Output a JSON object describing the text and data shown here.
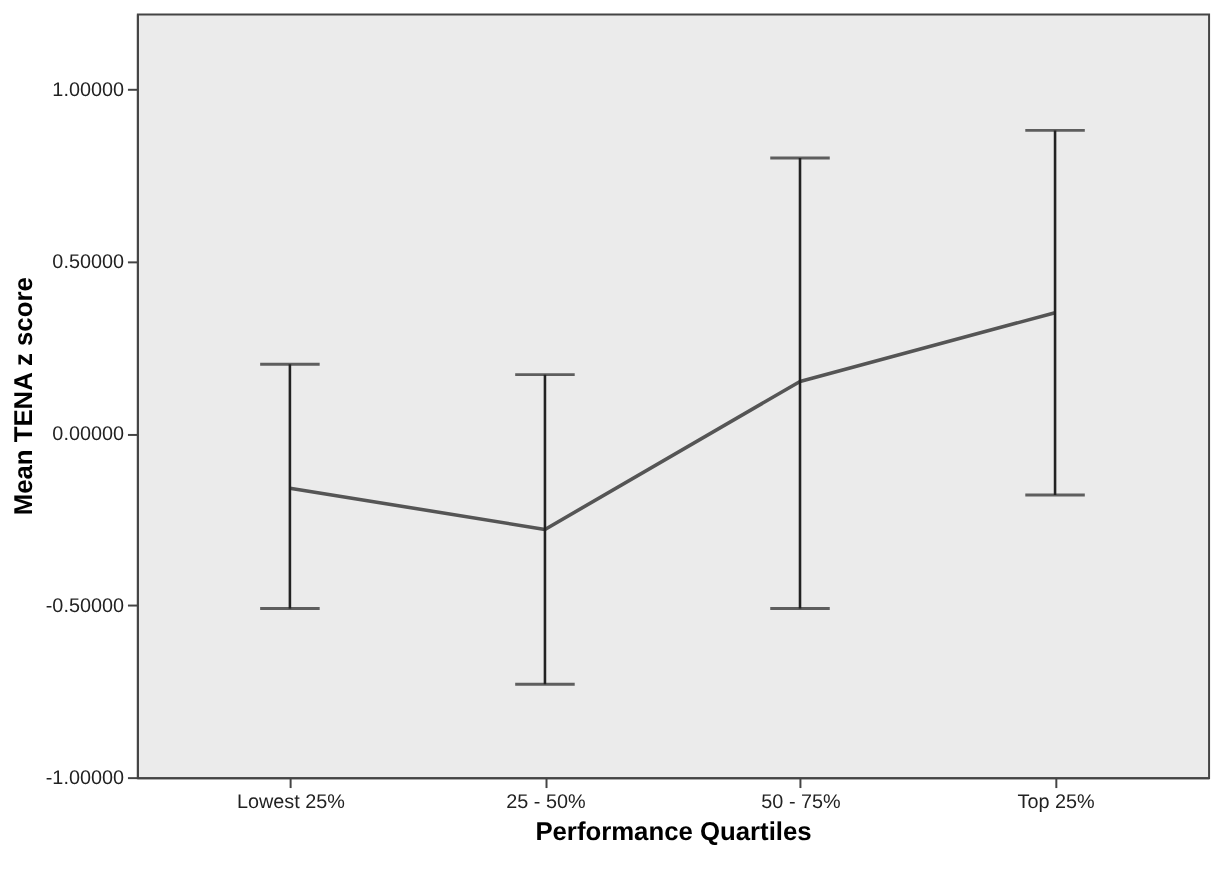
{
  "chart_data": {
    "type": "line",
    "xlabel": "Performance Quartiles",
    "ylabel": "Mean TENA z score",
    "categories": [
      "Lowest 25%",
      "25 - 50%",
      "50 - 75%",
      "Top 25%"
    ],
    "series": [
      {
        "color": "#555555",
        "values": [
          -0.16,
          -0.28,
          0.15,
          0.35
        ],
        "errors": [
          [
            -0.51,
            0.2
          ],
          [
            -0.73,
            0.17
          ],
          [
            -0.51,
            0.8
          ],
          [
            -0.18,
            0.88
          ]
        ]
      }
    ],
    "ylim": [
      -1,
      1.22
    ],
    "yticks": [
      {
        "value": -1,
        "label": "-1.00000"
      },
      {
        "value": -0.5,
        "label": "-0.50000"
      },
      {
        "value": 0,
        "label": "0.00000"
      },
      {
        "value": 0.5,
        "label": "0.50000"
      },
      {
        "value": 1,
        "label": "1.00000"
      }
    ],
    "grid": false,
    "marker": "none",
    "line_style": "solid"
  }
}
